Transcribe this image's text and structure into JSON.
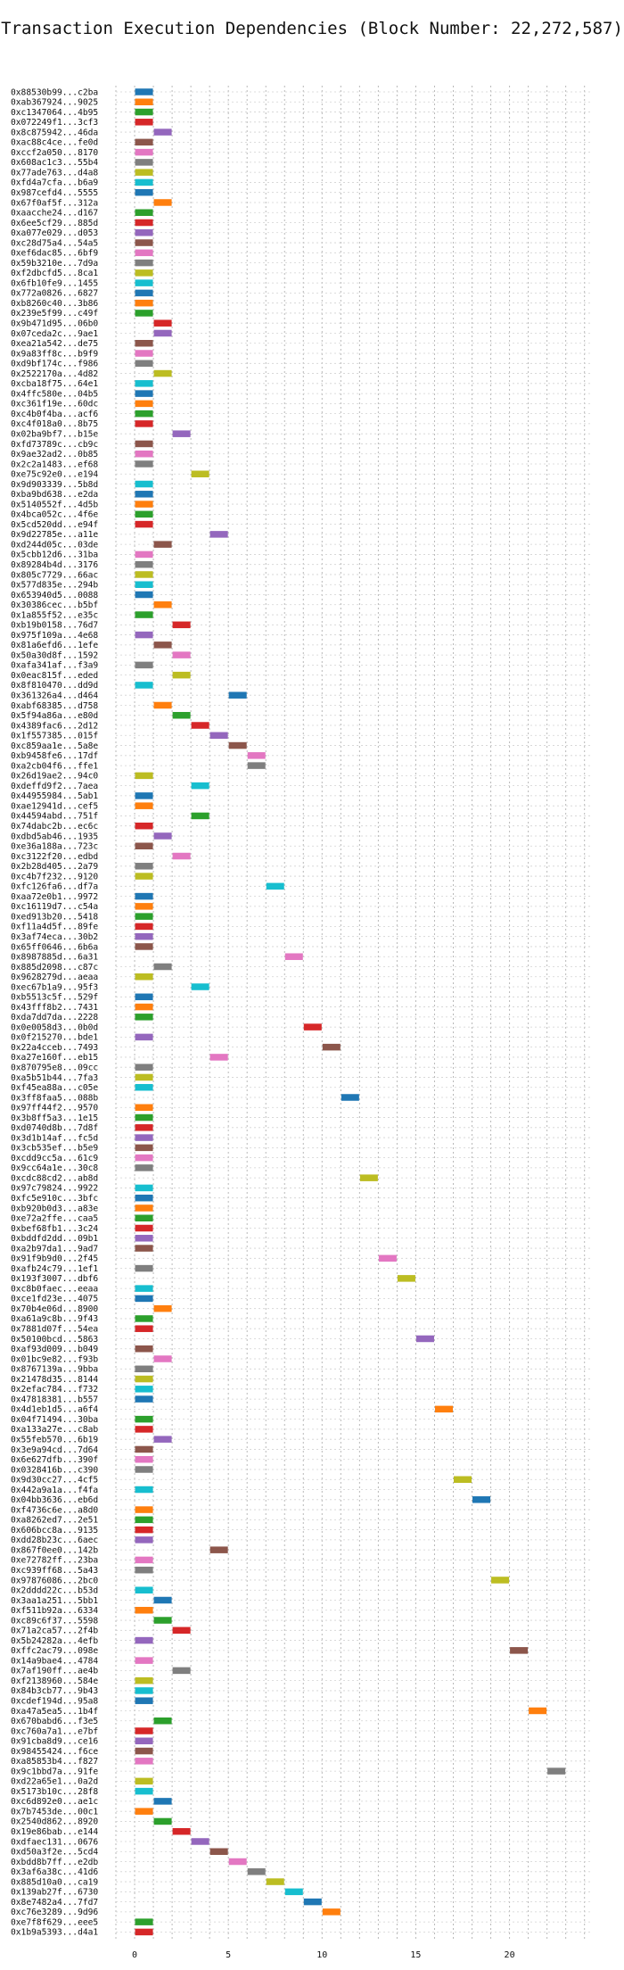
{
  "chart_data": {
    "type": "gantt",
    "title": "Transaction Execution Dependencies (Block Number: 22,272,587)",
    "xlim": [
      -1,
      24.3
    ],
    "x_ticks": [
      0,
      5,
      10,
      15,
      20
    ],
    "grid": true,
    "palette": [
      "#1f77b4",
      "#ff7f0e",
      "#2ca02c",
      "#d62728",
      "#9467bd",
      "#8c564b",
      "#e377c2",
      "#7f7f7f",
      "#bcbd22",
      "#17becf"
    ],
    "transactions": [
      {
        "label": "0x88530b99...c2ba",
        "start": 0,
        "end": 1
      },
      {
        "label": "0xab367924...9025",
        "start": 0,
        "end": 1
      },
      {
        "label": "0xc1347064...4b95",
        "start": 0,
        "end": 1
      },
      {
        "label": "0x072249f1...3cf3",
        "start": 0,
        "end": 1
      },
      {
        "label": "0x8c875942...46da",
        "start": 1,
        "end": 2
      },
      {
        "label": "0xac88c4ce...fe0d",
        "start": 0,
        "end": 1
      },
      {
        "label": "0xccf2a050...8170",
        "start": 0,
        "end": 1
      },
      {
        "label": "0x608ac1c3...55b4",
        "start": 0,
        "end": 1
      },
      {
        "label": "0x77ade763...d4a8",
        "start": 0,
        "end": 1
      },
      {
        "label": "0xfd4a7cfa...b6a9",
        "start": 0,
        "end": 1
      },
      {
        "label": "0x987cefd4...5555",
        "start": 0,
        "end": 1
      },
      {
        "label": "0x67f0af5f...312a",
        "start": 1,
        "end": 2
      },
      {
        "label": "0xaacche24...d167",
        "start": 0,
        "end": 1
      },
      {
        "label": "0x6ee5cf29...885d",
        "start": 0,
        "end": 1
      },
      {
        "label": "0xa077e029...d053",
        "start": 0,
        "end": 1
      },
      {
        "label": "0xc28d75a4...54a5",
        "start": 0,
        "end": 1
      },
      {
        "label": "0xef6dac85...6bf9",
        "start": 0,
        "end": 1
      },
      {
        "label": "0x59b3210e...7d9a",
        "start": 0,
        "end": 1
      },
      {
        "label": "0xf2dbcfd5...8ca1",
        "start": 0,
        "end": 1
      },
      {
        "label": "0x6fb10fe9...1455",
        "start": 0,
        "end": 1
      },
      {
        "label": "0x772a0826...6827",
        "start": 0,
        "end": 1
      },
      {
        "label": "0xb8260c40...3b86",
        "start": 0,
        "end": 1
      },
      {
        "label": "0x239e5f99...c49f",
        "start": 0,
        "end": 1
      },
      {
        "label": "0x9b471d95...06b0",
        "start": 1,
        "end": 2
      },
      {
        "label": "0x07ceda2c...9ae1",
        "start": 1,
        "end": 2
      },
      {
        "label": "0xea21a542...de75",
        "start": 0,
        "end": 1
      },
      {
        "label": "0x9a83ff8c...b9f9",
        "start": 0,
        "end": 1
      },
      {
        "label": "0xd9bf174c...f986",
        "start": 0,
        "end": 1
      },
      {
        "label": "0x2522170a...4d82",
        "start": 1,
        "end": 2
      },
      {
        "label": "0xcba18f75...64e1",
        "start": 0,
        "end": 1
      },
      {
        "label": "0x4ffc580e...04b5",
        "start": 0,
        "end": 1
      },
      {
        "label": "0xc361f19e...60dc",
        "start": 0,
        "end": 1
      },
      {
        "label": "0xc4b0f4ba...acf6",
        "start": 0,
        "end": 1
      },
      {
        "label": "0xc4f018a0...8b75",
        "start": 0,
        "end": 1
      },
      {
        "label": "0x02ba9bf7...b15e",
        "start": 2,
        "end": 3
      },
      {
        "label": "0xfd73789c...cb9c",
        "start": 0,
        "end": 1
      },
      {
        "label": "0x9ae32ad2...0b85",
        "start": 0,
        "end": 1
      },
      {
        "label": "0x2c2a1483...ef68",
        "start": 0,
        "end": 1
      },
      {
        "label": "0xe75c92e0...e194",
        "start": 3,
        "end": 4
      },
      {
        "label": "0x9d903339...5b8d",
        "start": 0,
        "end": 1
      },
      {
        "label": "0xba9bd638...e2da",
        "start": 0,
        "end": 1
      },
      {
        "label": "0x5140552f...4d5b",
        "start": 0,
        "end": 1
      },
      {
        "label": "0x4bca052c...4f6e",
        "start": 0,
        "end": 1
      },
      {
        "label": "0x5cd520dd...e94f",
        "start": 0,
        "end": 1
      },
      {
        "label": "0x9d22785e...a11e",
        "start": 4,
        "end": 5
      },
      {
        "label": "0xd244d05c...03de",
        "start": 1,
        "end": 2
      },
      {
        "label": "0x5cbb12d6...31ba",
        "start": 0,
        "end": 1
      },
      {
        "label": "0x89284b4d...3176",
        "start": 0,
        "end": 1
      },
      {
        "label": "0x805c7729...66ac",
        "start": 0,
        "end": 1
      },
      {
        "label": "0x577d835e...294b",
        "start": 0,
        "end": 1
      },
      {
        "label": "0x653940d5...0088",
        "start": 0,
        "end": 1
      },
      {
        "label": "0x30386cec...b5bf",
        "start": 1,
        "end": 2
      },
      {
        "label": "0x1a855f52...e35c",
        "start": 0,
        "end": 1
      },
      {
        "label": "0xb19b0158...76d7",
        "start": 2,
        "end": 3
      },
      {
        "label": "0x975f109a...4e68",
        "start": 0,
        "end": 1
      },
      {
        "label": "0x81a6efd6...1efe",
        "start": 1,
        "end": 2
      },
      {
        "label": "0x50a30d8f...1592",
        "start": 2,
        "end": 3
      },
      {
        "label": "0xafa341af...f3a9",
        "start": 0,
        "end": 1
      },
      {
        "label": "0x0eac815f...eded",
        "start": 2,
        "end": 3
      },
      {
        "label": "0x8f810470...dd9d",
        "start": 0,
        "end": 1
      },
      {
        "label": "0x361326a4...d464",
        "start": 5,
        "end": 6
      },
      {
        "label": "0xabf68385...d758",
        "start": 1,
        "end": 2
      },
      {
        "label": "0x5f94a86a...e80d",
        "start": 2,
        "end": 3
      },
      {
        "label": "0x4389fac6...2d12",
        "start": 3,
        "end": 4
      },
      {
        "label": "0x1f557385...015f",
        "start": 4,
        "end": 5
      },
      {
        "label": "0xc859aa1e...5a8e",
        "start": 5,
        "end": 6
      },
      {
        "label": "0xb9458fe6...17df",
        "start": 6,
        "end": 7
      },
      {
        "label": "0xa2cb04f6...ffe1",
        "start": 6,
        "end": 7
      },
      {
        "label": "0x26d19ae2...94c0",
        "start": 0,
        "end": 1
      },
      {
        "label": "0xdeffd9f2...7aea",
        "start": 3,
        "end": 4
      },
      {
        "label": "0x44955984...5ab1",
        "start": 0,
        "end": 1
      },
      {
        "label": "0xae12941d...cef5",
        "start": 0,
        "end": 1
      },
      {
        "label": "0x44594abd...751f",
        "start": 3,
        "end": 4
      },
      {
        "label": "0x74dabc2b...ec6c",
        "start": 0,
        "end": 1
      },
      {
        "label": "0xdbd5ab46...1935",
        "start": 1,
        "end": 2
      },
      {
        "label": "0xe36a188a...723c",
        "start": 0,
        "end": 1
      },
      {
        "label": "0xc3122f20...edbd",
        "start": 2,
        "end": 3
      },
      {
        "label": "0x2b28d405...2a79",
        "start": 0,
        "end": 1
      },
      {
        "label": "0xc4b7f232...9120",
        "start": 0,
        "end": 1
      },
      {
        "label": "0xfc126fa6...df7a",
        "start": 7,
        "end": 8
      },
      {
        "label": "0xaa72e0b1...9972",
        "start": 0,
        "end": 1
      },
      {
        "label": "0xc16119d7...c54a",
        "start": 0,
        "end": 1
      },
      {
        "label": "0xed913b20...5418",
        "start": 0,
        "end": 1
      },
      {
        "label": "0xf11a4d5f...89fe",
        "start": 0,
        "end": 1
      },
      {
        "label": "0x3af74eca...30b2",
        "start": 0,
        "end": 1
      },
      {
        "label": "0x65ff0646...6b6a",
        "start": 0,
        "end": 1
      },
      {
        "label": "0x8987885d...6a31",
        "start": 8,
        "end": 9
      },
      {
        "label": "0x885d2098...c87c",
        "start": 1,
        "end": 2
      },
      {
        "label": "0x9628279d...aeaa",
        "start": 0,
        "end": 1
      },
      {
        "label": "0xec67b1a9...95f3",
        "start": 3,
        "end": 4
      },
      {
        "label": "0xb5513c5f...529f",
        "start": 0,
        "end": 1
      },
      {
        "label": "0x43fff8b2...7431",
        "start": 0,
        "end": 1
      },
      {
        "label": "0xda7dd7da...2228",
        "start": 0,
        "end": 1
      },
      {
        "label": "0x0e0058d3...0b0d",
        "start": 9,
        "end": 10
      },
      {
        "label": "0x0f215270...bde1",
        "start": 0,
        "end": 1
      },
      {
        "label": "0x22a4cceb...7493",
        "start": 10,
        "end": 11
      },
      {
        "label": "0xa27e160f...eb15",
        "start": 4,
        "end": 5
      },
      {
        "label": "0x870795e8...09cc",
        "start": 0,
        "end": 1
      },
      {
        "label": "0xa5b51b44...7fa3",
        "start": 0,
        "end": 1
      },
      {
        "label": "0xf45ea88a...c05e",
        "start": 0,
        "end": 1
      },
      {
        "label": "0x3ff8faa5...088b",
        "start": 11,
        "end": 12
      },
      {
        "label": "0x97ff44f2...9570",
        "start": 0,
        "end": 1
      },
      {
        "label": "0x3b8ff5a3...1e15",
        "start": 0,
        "end": 1
      },
      {
        "label": "0xd0740d8b...7d8f",
        "start": 0,
        "end": 1
      },
      {
        "label": "0x3d1b14af...fc5d",
        "start": 0,
        "end": 1
      },
      {
        "label": "0x3cb535ef...b5e9",
        "start": 0,
        "end": 1
      },
      {
        "label": "0xcdd9cc5a...61c9",
        "start": 0,
        "end": 1
      },
      {
        "label": "0x9cc64a1e...30c8",
        "start": 0,
        "end": 1
      },
      {
        "label": "0xcdc88cd2...ab8d",
        "start": 12,
        "end": 13
      },
      {
        "label": "0x97c79824...9922",
        "start": 0,
        "end": 1
      },
      {
        "label": "0xfc5e910c...3bfc",
        "start": 0,
        "end": 1
      },
      {
        "label": "0xb920b0d3...a83e",
        "start": 0,
        "end": 1
      },
      {
        "label": "0xe72a2ffe...caa5",
        "start": 0,
        "end": 1
      },
      {
        "label": "0xbef68fb1...3c24",
        "start": 0,
        "end": 1
      },
      {
        "label": "0xbddfd2dd...09b1",
        "start": 0,
        "end": 1
      },
      {
        "label": "0xa2b97da1...9ad7",
        "start": 0,
        "end": 1
      },
      {
        "label": "0x91f9b9d0...2f45",
        "start": 13,
        "end": 14
      },
      {
        "label": "0xafb24c79...1ef1",
        "start": 0,
        "end": 1
      },
      {
        "label": "0x193f3007...dbf6",
        "start": 14,
        "end": 15
      },
      {
        "label": "0xc8b0faec...eeaa",
        "start": 0,
        "end": 1
      },
      {
        "label": "0xce1fd23e...4075",
        "start": 0,
        "end": 1
      },
      {
        "label": "0x70b4e06d...8900",
        "start": 1,
        "end": 2
      },
      {
        "label": "0xa61a9c8b...9f43",
        "start": 0,
        "end": 1
      },
      {
        "label": "0x7881d07f...54ea",
        "start": 0,
        "end": 1
      },
      {
        "label": "0x50100bcd...5863",
        "start": 15,
        "end": 16
      },
      {
        "label": "0xaf93d009...b049",
        "start": 0,
        "end": 1
      },
      {
        "label": "0x01bc9e82...f93b",
        "start": 1,
        "end": 2
      },
      {
        "label": "0x8767139a...9bba",
        "start": 0,
        "end": 1
      },
      {
        "label": "0x21478d35...8144",
        "start": 0,
        "end": 1
      },
      {
        "label": "0x2efac784...f732",
        "start": 0,
        "end": 1
      },
      {
        "label": "0x47818381...b557",
        "start": 0,
        "end": 1
      },
      {
        "label": "0x4d1eb1d5...a6f4",
        "start": 16,
        "end": 17
      },
      {
        "label": "0x04f71494...30ba",
        "start": 0,
        "end": 1
      },
      {
        "label": "0xa133a27e...c8ab",
        "start": 0,
        "end": 1
      },
      {
        "label": "0x55feb570...6b19",
        "start": 1,
        "end": 2
      },
      {
        "label": "0x3e9a94cd...7d64",
        "start": 0,
        "end": 1
      },
      {
        "label": "0x6e627dfb...390f",
        "start": 0,
        "end": 1
      },
      {
        "label": "0x0328416b...c390",
        "start": 0,
        "end": 1
      },
      {
        "label": "0x9d30cc27...4cf5",
        "start": 17,
        "end": 18
      },
      {
        "label": "0x442a9a1a...f4fa",
        "start": 0,
        "end": 1
      },
      {
        "label": "0x04bb3636...eb6d",
        "start": 18,
        "end": 19
      },
      {
        "label": "0xf4736c6e...a8d0",
        "start": 0,
        "end": 1
      },
      {
        "label": "0xa8262ed7...2e51",
        "start": 0,
        "end": 1
      },
      {
        "label": "0x606bcc8a...9135",
        "start": 0,
        "end": 1
      },
      {
        "label": "0xdd28b23c...6aec",
        "start": 0,
        "end": 1
      },
      {
        "label": "0x867f0ee0...142b",
        "start": 4,
        "end": 5
      },
      {
        "label": "0xe72782ff...23ba",
        "start": 0,
        "end": 1
      },
      {
        "label": "0xc939ff68...5a43",
        "start": 0,
        "end": 1
      },
      {
        "label": "0x97876086...2bc0",
        "start": 19,
        "end": 20
      },
      {
        "label": "0x2dddd22c...b53d",
        "start": 0,
        "end": 1
      },
      {
        "label": "0x3aa1a251...5bb1",
        "start": 1,
        "end": 2
      },
      {
        "label": "0xf511b92a...6334",
        "start": 0,
        "end": 1
      },
      {
        "label": "0xc89c6f37...5598",
        "start": 1,
        "end": 2
      },
      {
        "label": "0x71a2ca57...2f4b",
        "start": 2,
        "end": 3
      },
      {
        "label": "0x5b24282a...4efb",
        "start": 0,
        "end": 1
      },
      {
        "label": "0xffc2ac79...098e",
        "start": 20,
        "end": 21
      },
      {
        "label": "0x14a9bae4...4784",
        "start": 0,
        "end": 1
      },
      {
        "label": "0x7af190ff...ae4b",
        "start": 2,
        "end": 3
      },
      {
        "label": "0xf2138960...584e",
        "start": 0,
        "end": 1
      },
      {
        "label": "0x84b3cb77...9b43",
        "start": 0,
        "end": 1
      },
      {
        "label": "0xcdef194d...95a8",
        "start": 0,
        "end": 1
      },
      {
        "label": "0xa47a5ea5...1b4f",
        "start": 21,
        "end": 22
      },
      {
        "label": "0x670babd6...f3e5",
        "start": 1,
        "end": 2
      },
      {
        "label": "0xc760a7a1...e7bf",
        "start": 0,
        "end": 1
      },
      {
        "label": "0x91cba8d9...ce16",
        "start": 0,
        "end": 1
      },
      {
        "label": "0x98455424...f6ce",
        "start": 0,
        "end": 1
      },
      {
        "label": "0xa85853b4...f827",
        "start": 0,
        "end": 1
      },
      {
        "label": "0x9c1bbd7a...91fe",
        "start": 22,
        "end": 23
      },
      {
        "label": "0xd22a65e1...0a2d",
        "start": 0,
        "end": 1
      },
      {
        "label": "0x5173b10c...28f8",
        "start": 0,
        "end": 1
      },
      {
        "label": "0xc6d892e0...ae1c",
        "start": 1,
        "end": 2
      },
      {
        "label": "0x7b7453de...00c1",
        "start": 0,
        "end": 1
      },
      {
        "label": "0x2540d862...8920",
        "start": 1,
        "end": 2
      },
      {
        "label": "0x19e86bab...e144",
        "start": 2,
        "end": 3
      },
      {
        "label": "0xdfaec131...0676",
        "start": 3,
        "end": 4
      },
      {
        "label": "0xd50a3f2e...5cd4",
        "start": 4,
        "end": 5
      },
      {
        "label": "0xbdd8b7ff...e2db",
        "start": 5,
        "end": 6
      },
      {
        "label": "0x3af6a38c...41d6",
        "start": 6,
        "end": 7
      },
      {
        "label": "0x885d10a0...ca19",
        "start": 7,
        "end": 8
      },
      {
        "label": "0x139ab27f...6730",
        "start": 8,
        "end": 9
      },
      {
        "label": "0x8e7482a4...7fd7",
        "start": 9,
        "end": 10
      },
      {
        "label": "0xc76e3289...9d96",
        "start": 10,
        "end": 11
      },
      {
        "label": "0xe7f8f629...eee5",
        "start": 0,
        "end": 1
      },
      {
        "label": "0x1b9a5393...d4a1",
        "start": 0,
        "end": 1
      }
    ]
  }
}
